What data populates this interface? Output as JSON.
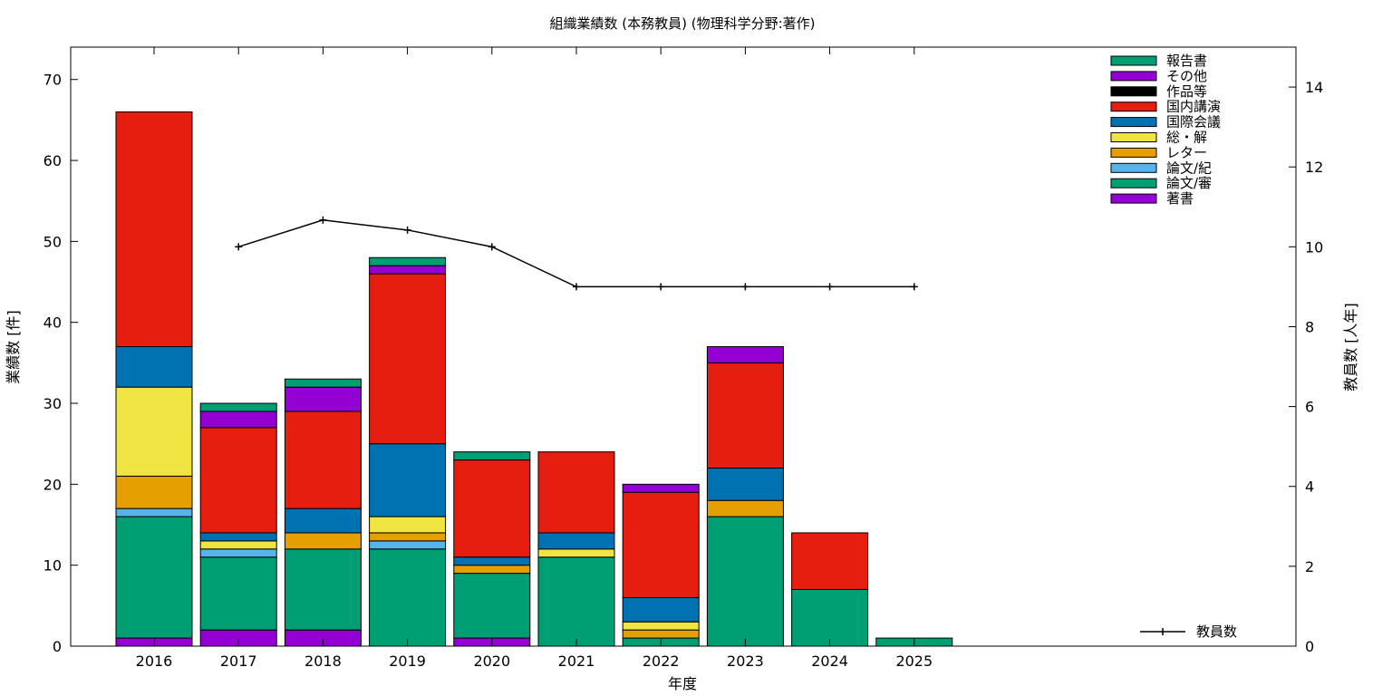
{
  "chart_data": {
    "type": "bar",
    "stacked": true,
    "title": "組織業績数 (本務教員) (物理科学分野:著作)",
    "xlabel": "年度",
    "ylabel": "業績数 [件]",
    "y2label": "教員数 [人年]",
    "ylim": [
      0,
      74
    ],
    "y2lim": [
      0,
      15
    ],
    "yticks": [
      0,
      10,
      20,
      30,
      40,
      50,
      60,
      70
    ],
    "y2ticks": [
      0,
      2,
      4,
      6,
      8,
      10,
      12,
      14
    ],
    "grid": false,
    "legend_position": "top-right",
    "categories": [
      "2016",
      "2017",
      "2018",
      "2019",
      "2020",
      "2021",
      "2022",
      "2023",
      "2024",
      "2025"
    ],
    "series": [
      {
        "name": "著書",
        "color": "#9400d3",
        "values": [
          1,
          2,
          2,
          0,
          1,
          0,
          0,
          0,
          0,
          0
        ]
      },
      {
        "name": "論文/審",
        "color": "#009e73",
        "values": [
          15,
          9,
          10,
          12,
          8,
          11,
          1,
          16,
          7,
          1
        ]
      },
      {
        "name": "論文/紀",
        "color": "#56b4e9",
        "values": [
          1,
          1,
          0,
          1,
          0,
          0,
          0,
          0,
          0,
          0
        ]
      },
      {
        "name": "レター",
        "color": "#e69f00",
        "values": [
          4,
          0,
          2,
          1,
          1,
          0,
          1,
          2,
          0,
          0
        ]
      },
      {
        "name": "総・解",
        "color": "#f0e442",
        "values": [
          11,
          1,
          0,
          2,
          0,
          1,
          1,
          0,
          0,
          0
        ]
      },
      {
        "name": "国際会議",
        "color": "#0072b2",
        "values": [
          5,
          1,
          3,
          9,
          1,
          2,
          3,
          4,
          0,
          0
        ]
      },
      {
        "name": "国内講演",
        "color": "#e51e10",
        "values": [
          29,
          13,
          12,
          21,
          12,
          10,
          13,
          13,
          7,
          0
        ]
      },
      {
        "name": "作品等",
        "color": "#000000",
        "values": [
          0,
          0,
          0,
          0,
          0,
          0,
          0,
          0,
          0,
          0
        ]
      },
      {
        "name": "その他",
        "color": "#9400d3",
        "values": [
          0,
          2,
          3,
          1,
          0,
          0,
          1,
          2,
          0,
          0
        ]
      },
      {
        "name": "報告書",
        "color": "#009e73",
        "values": [
          0,
          1,
          1,
          1,
          1,
          0,
          0,
          0,
          0,
          0
        ]
      }
    ],
    "line_series": {
      "name": "教員数",
      "axis": "y2",
      "color": "#000000",
      "x": [
        "2017",
        "2018",
        "2019",
        "2020",
        "2021",
        "2022",
        "2023",
        "2024",
        "2025"
      ],
      "values": [
        10,
        10.67,
        10.42,
        10,
        9,
        9,
        9,
        9,
        9
      ]
    }
  }
}
